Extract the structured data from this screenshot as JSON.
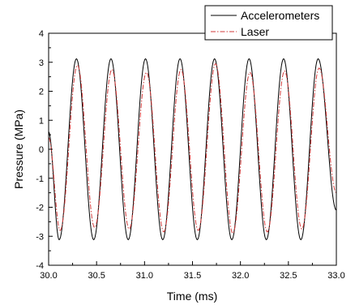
{
  "chart_data": {
    "type": "line",
    "title": "",
    "xlabel": "Time (ms)",
    "ylabel": "Pressure (MPa)",
    "xlim": [
      30.0,
      33.0
    ],
    "ylim": [
      -4,
      4
    ],
    "xticks": [
      "30.0",
      "30.5",
      "31.0",
      "31.5",
      "32.0",
      "32.5",
      "33.0"
    ],
    "yticks": [
      "-4",
      "-3",
      "-2",
      "-1",
      "0",
      "1",
      "2",
      "3",
      "4"
    ],
    "grid": false,
    "legend_position": "top-right",
    "series": [
      {
        "name": "Accelerometers",
        "color": "#000000",
        "style": "solid",
        "peak_times_ms": [
          30.29,
          30.65,
          31.01,
          31.37,
          31.73,
          32.09,
          32.45,
          32.81
        ],
        "trough_times_ms": [
          30.11,
          30.47,
          30.83,
          31.19,
          31.55,
          31.91,
          32.27,
          32.63
        ],
        "peak_value": 3.12,
        "trough_value": -3.12,
        "start": [
          30.0,
          0.6
        ],
        "end": [
          33.0,
          -2.1
        ]
      },
      {
        "name": "Laser",
        "color": "#d23a3a",
        "style": "dash-dot",
        "peak_times_ms": [
          30.3,
          30.66,
          31.02,
          31.38,
          31.74,
          32.1,
          32.46,
          32.82
        ],
        "trough_times_ms": [
          30.12,
          30.48,
          30.84,
          31.2,
          31.56,
          31.92,
          32.28,
          32.64
        ],
        "peak_values": [
          2.9,
          2.75,
          2.65,
          2.75,
          2.95,
          2.65,
          2.7,
          2.8
        ],
        "trough_values": [
          -2.8,
          -2.7,
          -2.75,
          -2.85,
          -2.8,
          -2.9,
          -2.85,
          -2.75
        ],
        "start": [
          30.0,
          0.4
        ],
        "end": [
          33.0,
          -1.5
        ]
      }
    ]
  }
}
